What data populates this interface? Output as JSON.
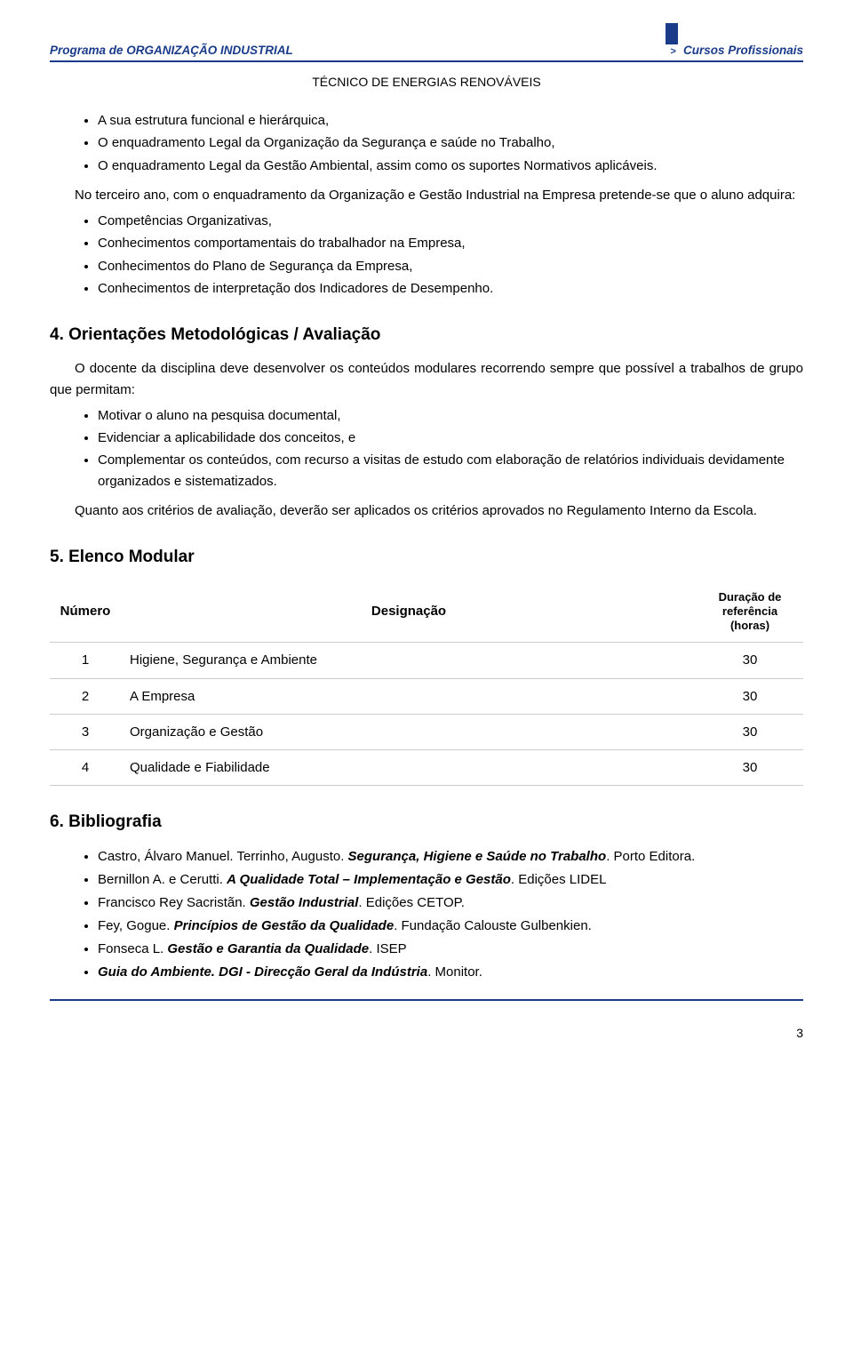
{
  "header": {
    "left": "Programa de ORGANIZAÇÃO INDUSTRIAL",
    "right": "Cursos Profissionais",
    "subtitle": "TÉCNICO DE ENERGIAS RENOVÁVEIS"
  },
  "intro_bullets_1": [
    "A sua estrutura funcional e hierárquica,",
    "O enquadramento Legal da Organização da Segurança e saúde no Trabalho,",
    "O enquadramento Legal da Gestão Ambiental, assim como os suportes Normativos aplicáveis."
  ],
  "para1": "No terceiro ano, com o enquadramento da Organização e Gestão Industrial na Empresa pretende-se que o aluno adquira:",
  "intro_bullets_2": [
    "Competências Organizativas,",
    "Conhecimentos comportamentais do trabalhador na Empresa,",
    "Conhecimentos do Plano de Segurança da Empresa,",
    "Conhecimentos de interpretação dos Indicadores de Desempenho."
  ],
  "section4": {
    "title": "4. Orientações Metodológicas / Avaliação",
    "lead": "O docente da disciplina deve desenvolver os conteúdos modulares recorrendo sempre que possível a trabalhos de grupo que permitam:",
    "bullets": [
      "Motivar o aluno na pesquisa documental,",
      "Evidenciar a aplicabilidade dos conceitos, e",
      "Complementar os conteúdos, com recurso a visitas de estudo com elaboração de relatórios individuais devidamente organizados e sistematizados."
    ],
    "closing": "Quanto aos critérios de avaliação, deverão ser aplicados os critérios aprovados no Regulamento Interno da Escola."
  },
  "section5": {
    "title": "5. Elenco Modular",
    "table": {
      "columns": [
        "Número",
        "Designação",
        "Duração de referência (horas)"
      ],
      "col_header_3_lines": [
        "Duração de",
        "referência",
        "(horas)"
      ],
      "rows": [
        [
          "1",
          "Higiene, Segurança e Ambiente",
          "30"
        ],
        [
          "2",
          "A Empresa",
          "30"
        ],
        [
          "3",
          "Organização e Gestão",
          "30"
        ],
        [
          "4",
          "Qualidade e Fiabilidade",
          "30"
        ]
      ]
    }
  },
  "section6": {
    "title": "6. Bibliografia",
    "items": [
      {
        "prefix": "Castro, Álvaro Manuel. Terrinho, Augusto. ",
        "bold": "Segurança, Higiene e Saúde no Trabalho",
        "suffix": ". Porto Editora."
      },
      {
        "prefix": "Bernillon A. e Cerutti. ",
        "bold": "A Qualidade Total – Implementação e Gestão",
        "suffix": ". Edições LIDEL"
      },
      {
        "prefix": "Francisco Rey Sacristãn. ",
        "bold": "Gestão Industrial",
        "suffix": ". Edições CETOP."
      },
      {
        "prefix": "Fey, Gogue. ",
        "bold": "Princípios de Gestão da Qualidade",
        "suffix": ". Fundação Calouste Gulbenkien."
      },
      {
        "prefix": "Fonseca L. ",
        "bold": "Gestão e Garantia da Qualidade",
        "suffix": ". ISEP"
      },
      {
        "prefix": "",
        "bold": "Guia do Ambiente. DGI - Direcção Geral da Indústria",
        "suffix": ". Monitor."
      }
    ]
  },
  "page_number": "3",
  "colors": {
    "brand": "#1a3b8a",
    "text": "#000000",
    "table_border": "#cccccc",
    "background": "#ffffff"
  }
}
